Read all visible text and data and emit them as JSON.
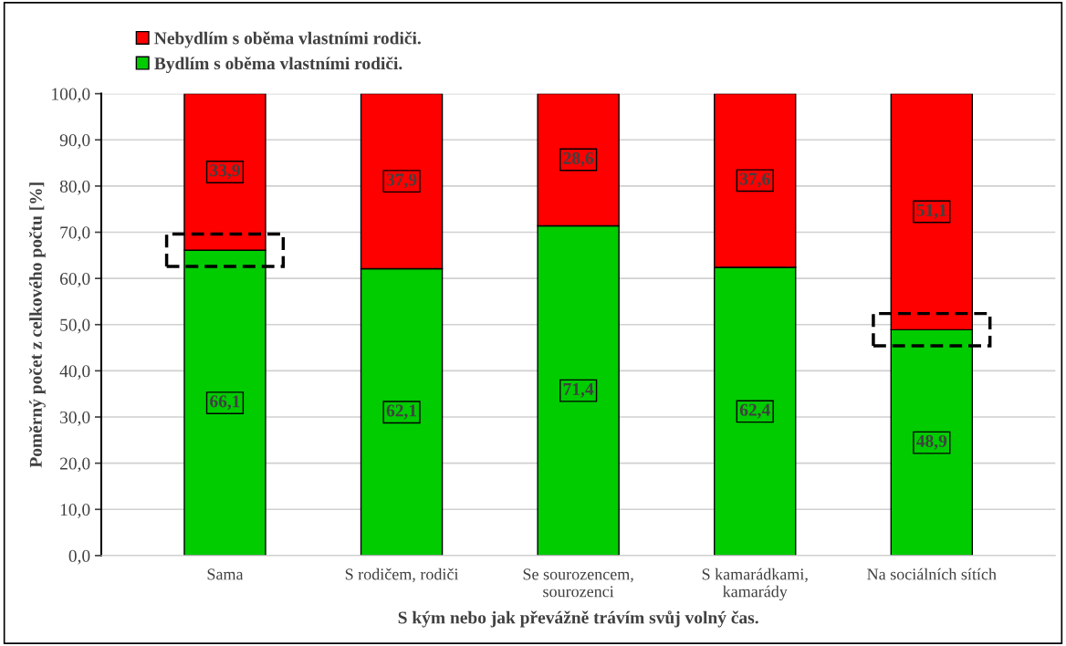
{
  "chart_data": {
    "type": "bar",
    "stacked": true,
    "xlabel": "S kým nebo jak převážně trávím svůj volný čas.",
    "ylabel": "Poměrný počet z celkového počtu [%]",
    "categories": [
      "Sama",
      "S rodičem, rodiči",
      "Se sourozencem,\nsourozenci",
      "S kamarádkami,\nkamarády",
      "Na sociálních sítích"
    ],
    "series": [
      {
        "name": "Bydlím s oběma vlastními rodiči.",
        "color": "#00cc00",
        "values": [
          66.1,
          62.1,
          71.4,
          62.4,
          48.9
        ],
        "value_labels": [
          "66,1",
          "62,1",
          "71,4",
          "62,4",
          "48,9"
        ]
      },
      {
        "name": "Nebydlím s oběma vlastními rodiči.",
        "color": "#ff0000",
        "values": [
          33.9,
          37.9,
          28.6,
          37.6,
          51.1
        ],
        "value_labels": [
          "33,9",
          "37,9",
          "28,6",
          "37,6",
          "51,1"
        ]
      }
    ],
    "ylim": [
      0,
      100
    ],
    "yticks": [
      {
        "value": 0,
        "label": "0,0"
      },
      {
        "value": 10,
        "label": "10,0"
      },
      {
        "value": 20,
        "label": "20,0"
      },
      {
        "value": 30,
        "label": "30,0"
      },
      {
        "value": 40,
        "label": "40,0"
      },
      {
        "value": 50,
        "label": "50,0"
      },
      {
        "value": 60,
        "label": "60,0"
      },
      {
        "value": 70,
        "label": "70,0"
      },
      {
        "value": 80,
        "label": "80,0"
      },
      {
        "value": 90,
        "label": "90,0"
      },
      {
        "value": 100,
        "label": "100,0"
      }
    ],
    "grid": "y",
    "legend": "top left"
  }
}
